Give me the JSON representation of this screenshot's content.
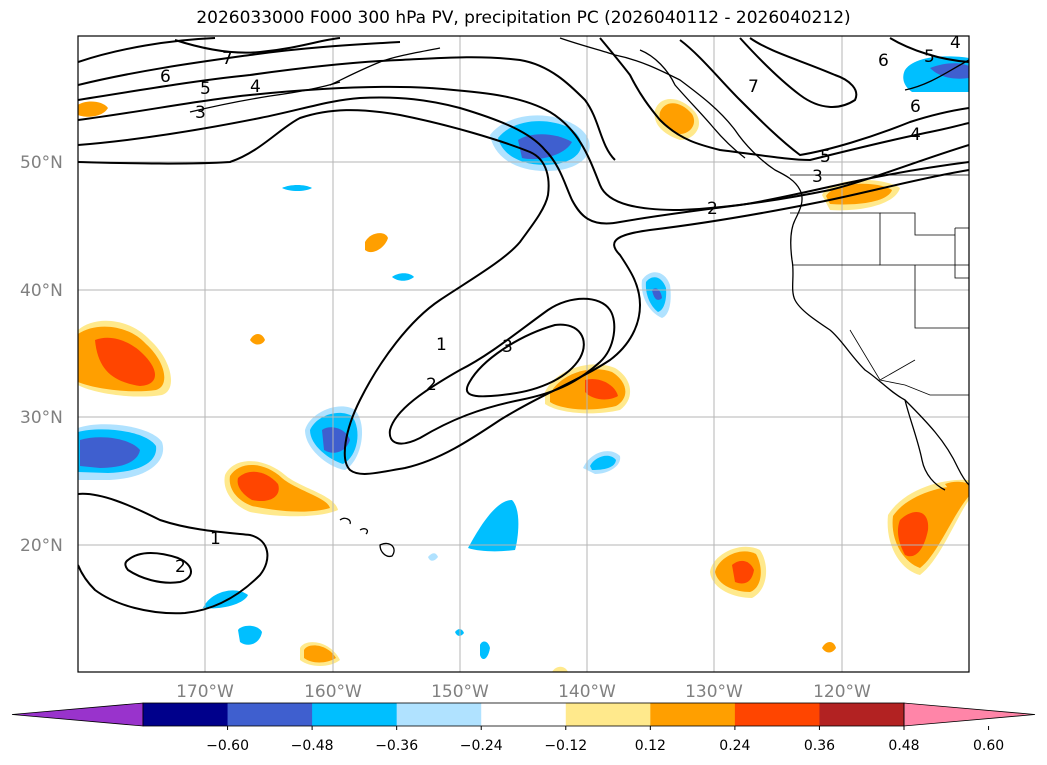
{
  "title": "2026033000 F000 300 hPa PV, precipitation PC (2026040112 - 2026040212)",
  "lat_labels": [
    "50°N",
    "40°N",
    "30°N",
    "20°N"
  ],
  "lon_labels": [
    "170°W",
    "160°W",
    "150°W",
    "140°W",
    "130°W",
    "120°W"
  ],
  "colorbar": {
    "ticks": [
      "−0.60",
      "−0.48",
      "−0.36",
      "−0.24",
      "−0.12",
      "0.12",
      "0.24",
      "0.36",
      "0.48",
      "0.60"
    ],
    "colors": [
      "#9933cc",
      "#00008b",
      "#3f5fcf",
      "#00bfff",
      "#b0e2ff",
      "#ffffff",
      "#ffe98c",
      "#ff9f00",
      "#ff4500",
      "#b22222",
      "#ff85a8"
    ]
  },
  "contour_labels": [
    "7",
    "6",
    "5",
    "4",
    "3",
    "6",
    "5",
    "4",
    "7",
    "6",
    "5",
    "4",
    "3",
    "2",
    "1",
    "2",
    "3",
    "1",
    "2"
  ],
  "colors": {
    "neg_light": "#b0e2ff",
    "neg_mid": "#00bfff",
    "neg_strong": "#3f5fcf",
    "pos_light": "#ffe98c",
    "pos_mid": "#ff9f00",
    "pos_strong": "#ff4500"
  }
}
